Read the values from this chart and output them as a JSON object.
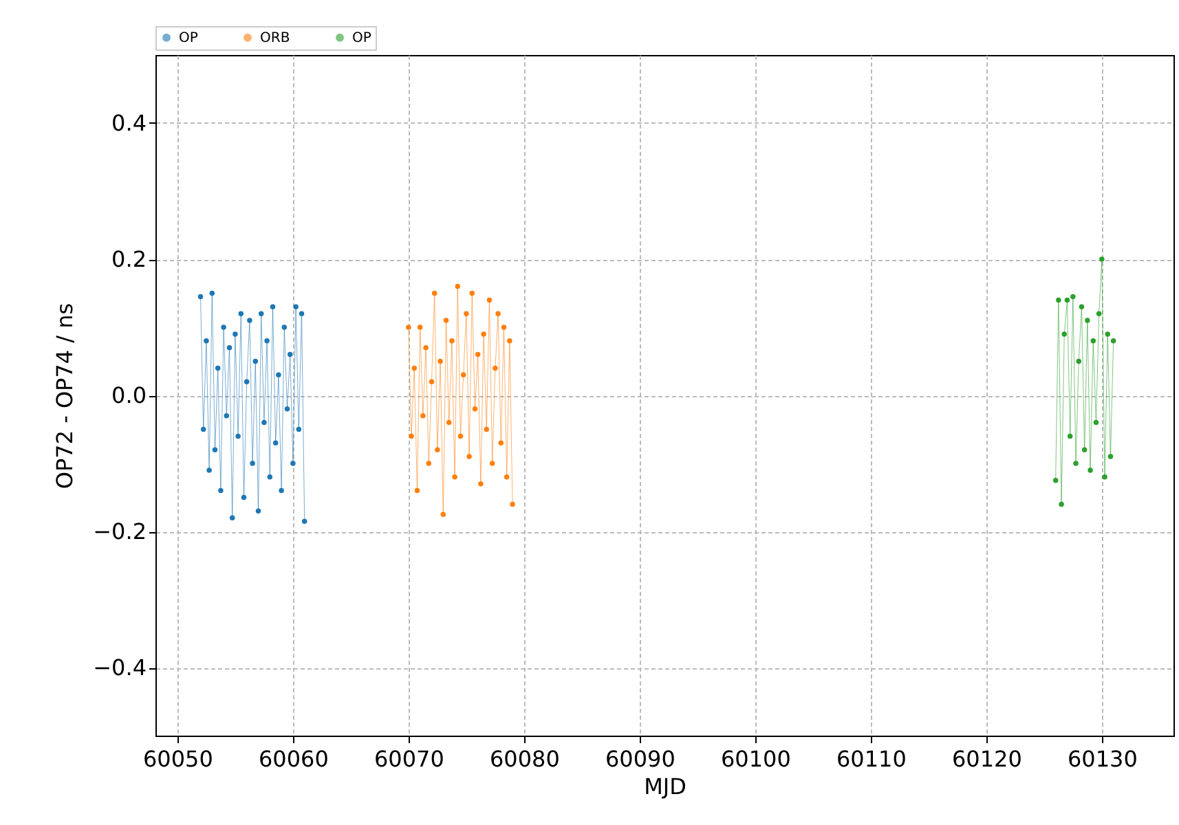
{
  "chart_data": {
    "type": "line",
    "xlabel": "MJD",
    "ylabel": "OP72 - OP74 / ns",
    "xlim": [
      60048.1,
      60136.2
    ],
    "ylim": [
      -0.5,
      0.5
    ],
    "xticks": [
      60050,
      60060,
      60070,
      60080,
      60090,
      60100,
      60110,
      60120,
      60130
    ],
    "yticks": [
      -0.4,
      -0.2,
      {
        "value": 0,
        "label": "0.0"
      },
      0.2,
      0.4
    ],
    "grid": true,
    "legend": "top",
    "marker": "circle",
    "line_style": "solid",
    "series": [
      {
        "name": "OP",
        "color": "#1f77b4",
        "x": [
          60052,
          60052.25,
          60052.5,
          60052.75,
          60053,
          60053.25,
          60053.5,
          60053.75,
          60054,
          60054.25,
          60054.5,
          60054.75,
          60055,
          60055.25,
          60055.5,
          60055.75,
          60056,
          60056.25,
          60056.5,
          60056.75,
          60057,
          60057.25,
          60057.5,
          60057.75,
          60058,
          60058.25,
          60058.5,
          60058.75,
          60059,
          60059.25,
          60059.5,
          60059.75,
          60060,
          60060.25,
          60060.5,
          60060.75,
          60061
        ],
        "values": [
          0.145,
          -0.05,
          0.08,
          -0.11,
          0.15,
          -0.08,
          0.04,
          -0.14,
          0.1,
          -0.03,
          0.07,
          -0.18,
          0.09,
          -0.06,
          0.12,
          -0.15,
          0.02,
          0.11,
          -0.1,
          0.05,
          -0.17,
          0.12,
          -0.04,
          0.08,
          -0.12,
          0.13,
          -0.07,
          0.03,
          -0.14,
          0.1,
          -0.02,
          0.06,
          -0.1,
          0.13,
          -0.05,
          0.12,
          -0.185
        ]
      },
      {
        "name": "ORB",
        "color": "#ff7f0e",
        "x": [
          60070,
          60070.25,
          60070.5,
          60070.75,
          60071,
          60071.25,
          60071.5,
          60071.75,
          60072,
          60072.25,
          60072.5,
          60072.75,
          60073,
          60073.25,
          60073.5,
          60073.75,
          60074,
          60074.25,
          60074.5,
          60074.75,
          60075,
          60075.25,
          60075.5,
          60075.75,
          60076,
          60076.25,
          60076.5,
          60076.75,
          60077,
          60077.25,
          60077.5,
          60077.75,
          60078,
          60078.25,
          60078.5,
          60078.75,
          60079
        ],
        "values": [
          0.1,
          -0.06,
          0.04,
          -0.14,
          0.1,
          -0.03,
          0.07,
          -0.1,
          0.02,
          0.15,
          -0.08,
          0.05,
          -0.175,
          0.11,
          -0.04,
          0.08,
          -0.12,
          0.16,
          -0.06,
          0.03,
          0.12,
          -0.09,
          0.15,
          -0.02,
          0.06,
          -0.13,
          0.09,
          -0.05,
          0.14,
          -0.1,
          0.04,
          0.12,
          -0.07,
          0.1,
          -0.12,
          0.08,
          -0.16
        ]
      },
      {
        "name": "OP",
        "color": "#2ca02c",
        "x": [
          60126,
          60126.25,
          60126.5,
          60126.75,
          60127,
          60127.25,
          60127.5,
          60127.75,
          60128,
          60128.25,
          60128.5,
          60128.75,
          60129,
          60129.25,
          60129.5,
          60129.75,
          60130,
          60130.25,
          60130.5,
          60130.75,
          60131
        ],
        "values": [
          -0.125,
          0.14,
          -0.16,
          0.09,
          0.14,
          -0.06,
          0.145,
          -0.1,
          0.05,
          0.13,
          -0.08,
          0.11,
          -0.11,
          0.08,
          -0.04,
          0.12,
          0.2,
          -0.12,
          0.09,
          -0.09,
          0.08
        ]
      }
    ]
  }
}
